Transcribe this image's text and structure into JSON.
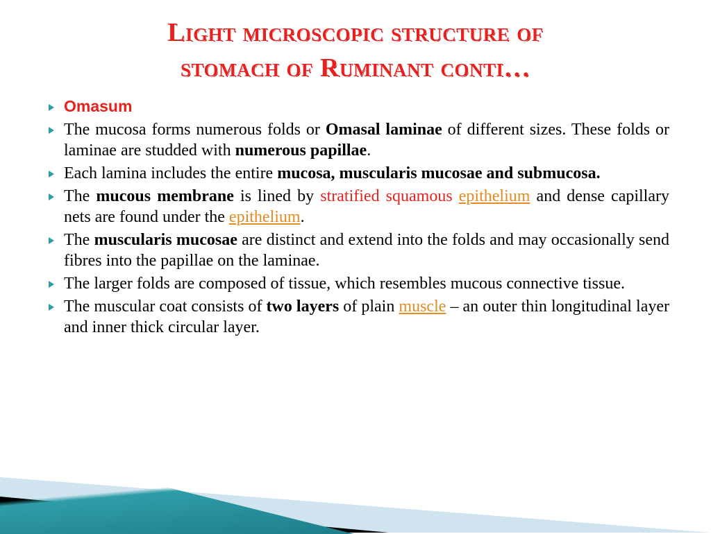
{
  "title_line1": "Light microscopic structure of",
  "title_line2": "stomach  of Ruminant conti…",
  "colors": {
    "title": "#e8211e",
    "bullet": "#2f9da8",
    "red_text": "#e8211e",
    "link": "#e38b22",
    "body": "#000000",
    "wedge_light": "#cfe4ee",
    "wedge_black": "#000000",
    "wedge_teal": "#2f9da8",
    "background": "#ffffff"
  },
  "typography": {
    "title_fontsize": 38,
    "body_fontsize": 24,
    "title_font": "Georgia small-caps",
    "body_font": "Times New Roman"
  },
  "bullets": [
    {
      "kind": "heading",
      "segments": [
        {
          "text": "Omasum",
          "style": "section-head"
        }
      ]
    },
    {
      "segments": [
        {
          "text": "The mucosa forms numerous folds or "
        },
        {
          "text": "Omasal laminae",
          "style": "b"
        },
        {
          "text": " of different sizes. These folds or laminae are studded with "
        },
        {
          "text": "numerous papillae",
          "style": "b"
        },
        {
          "text": "."
        }
      ]
    },
    {
      "segments": [
        {
          "text": "Each lamina includes the entire "
        },
        {
          "text": "mucosa, muscularis mucosae and submucosa.",
          "style": "b"
        }
      ]
    },
    {
      "segments": [
        {
          "text": "The "
        },
        {
          "text": "mucous membrane",
          "style": "b"
        },
        {
          "text": " is lined by "
        },
        {
          "text": "stratified squamous",
          "style": "red"
        },
        {
          "text": " "
        },
        {
          "text": "epithelium",
          "style": "link"
        },
        {
          "text": " and dense capillary nets are found under the "
        },
        {
          "text": "epithelium",
          "style": "link"
        },
        {
          "text": "."
        }
      ]
    },
    {
      "segments": [
        {
          "text": "The "
        },
        {
          "text": "muscularis mucosae",
          "style": "b"
        },
        {
          "text": " are distinct and extend into the folds and may occasionally send fibres into the papillae on the laminae."
        }
      ]
    },
    {
      "segments": [
        {
          "text": "The larger folds are composed of tissue, which resembles mucous connective tissue."
        }
      ]
    },
    {
      "segments": [
        {
          "text": "The muscular coat consists of "
        },
        {
          "text": "two layers",
          "style": "b"
        },
        {
          "text": " of plain "
        },
        {
          "text": "muscle",
          "style": "link"
        },
        {
          "text": " – an outer thin longitudinal layer and inner thick circular layer."
        }
      ]
    }
  ]
}
